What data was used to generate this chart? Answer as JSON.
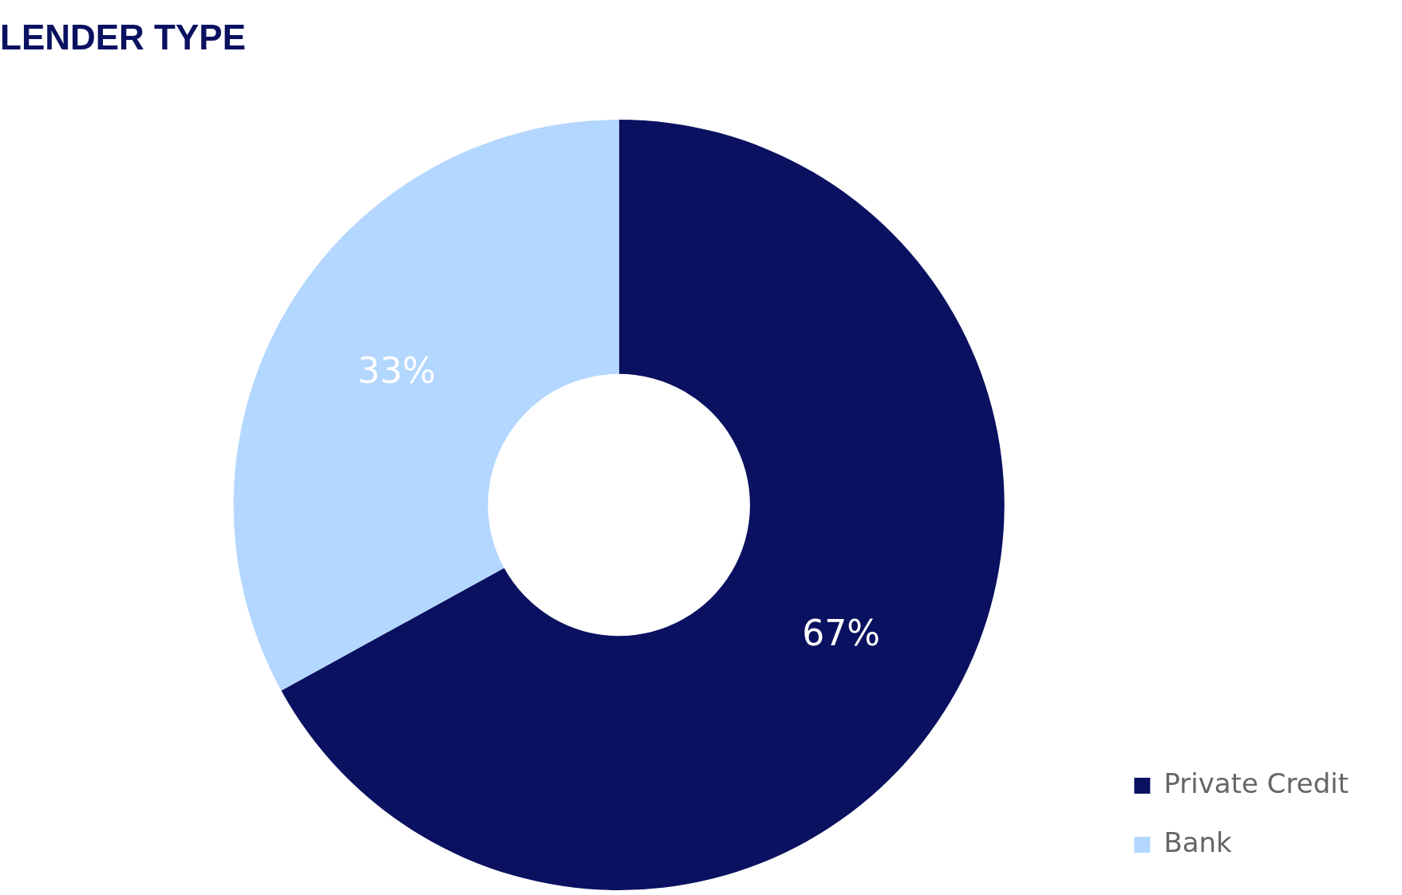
{
  "chart_data": {
    "type": "donut",
    "title": "LENDER TYPE",
    "categories": [
      "Private Credit",
      "Bank"
    ],
    "values": [
      67,
      33
    ],
    "colors": [
      "#0a1160",
      "#b3d7ff"
    ],
    "value_labels": [
      "67%",
      "33%"
    ],
    "legend": "bottom right"
  }
}
